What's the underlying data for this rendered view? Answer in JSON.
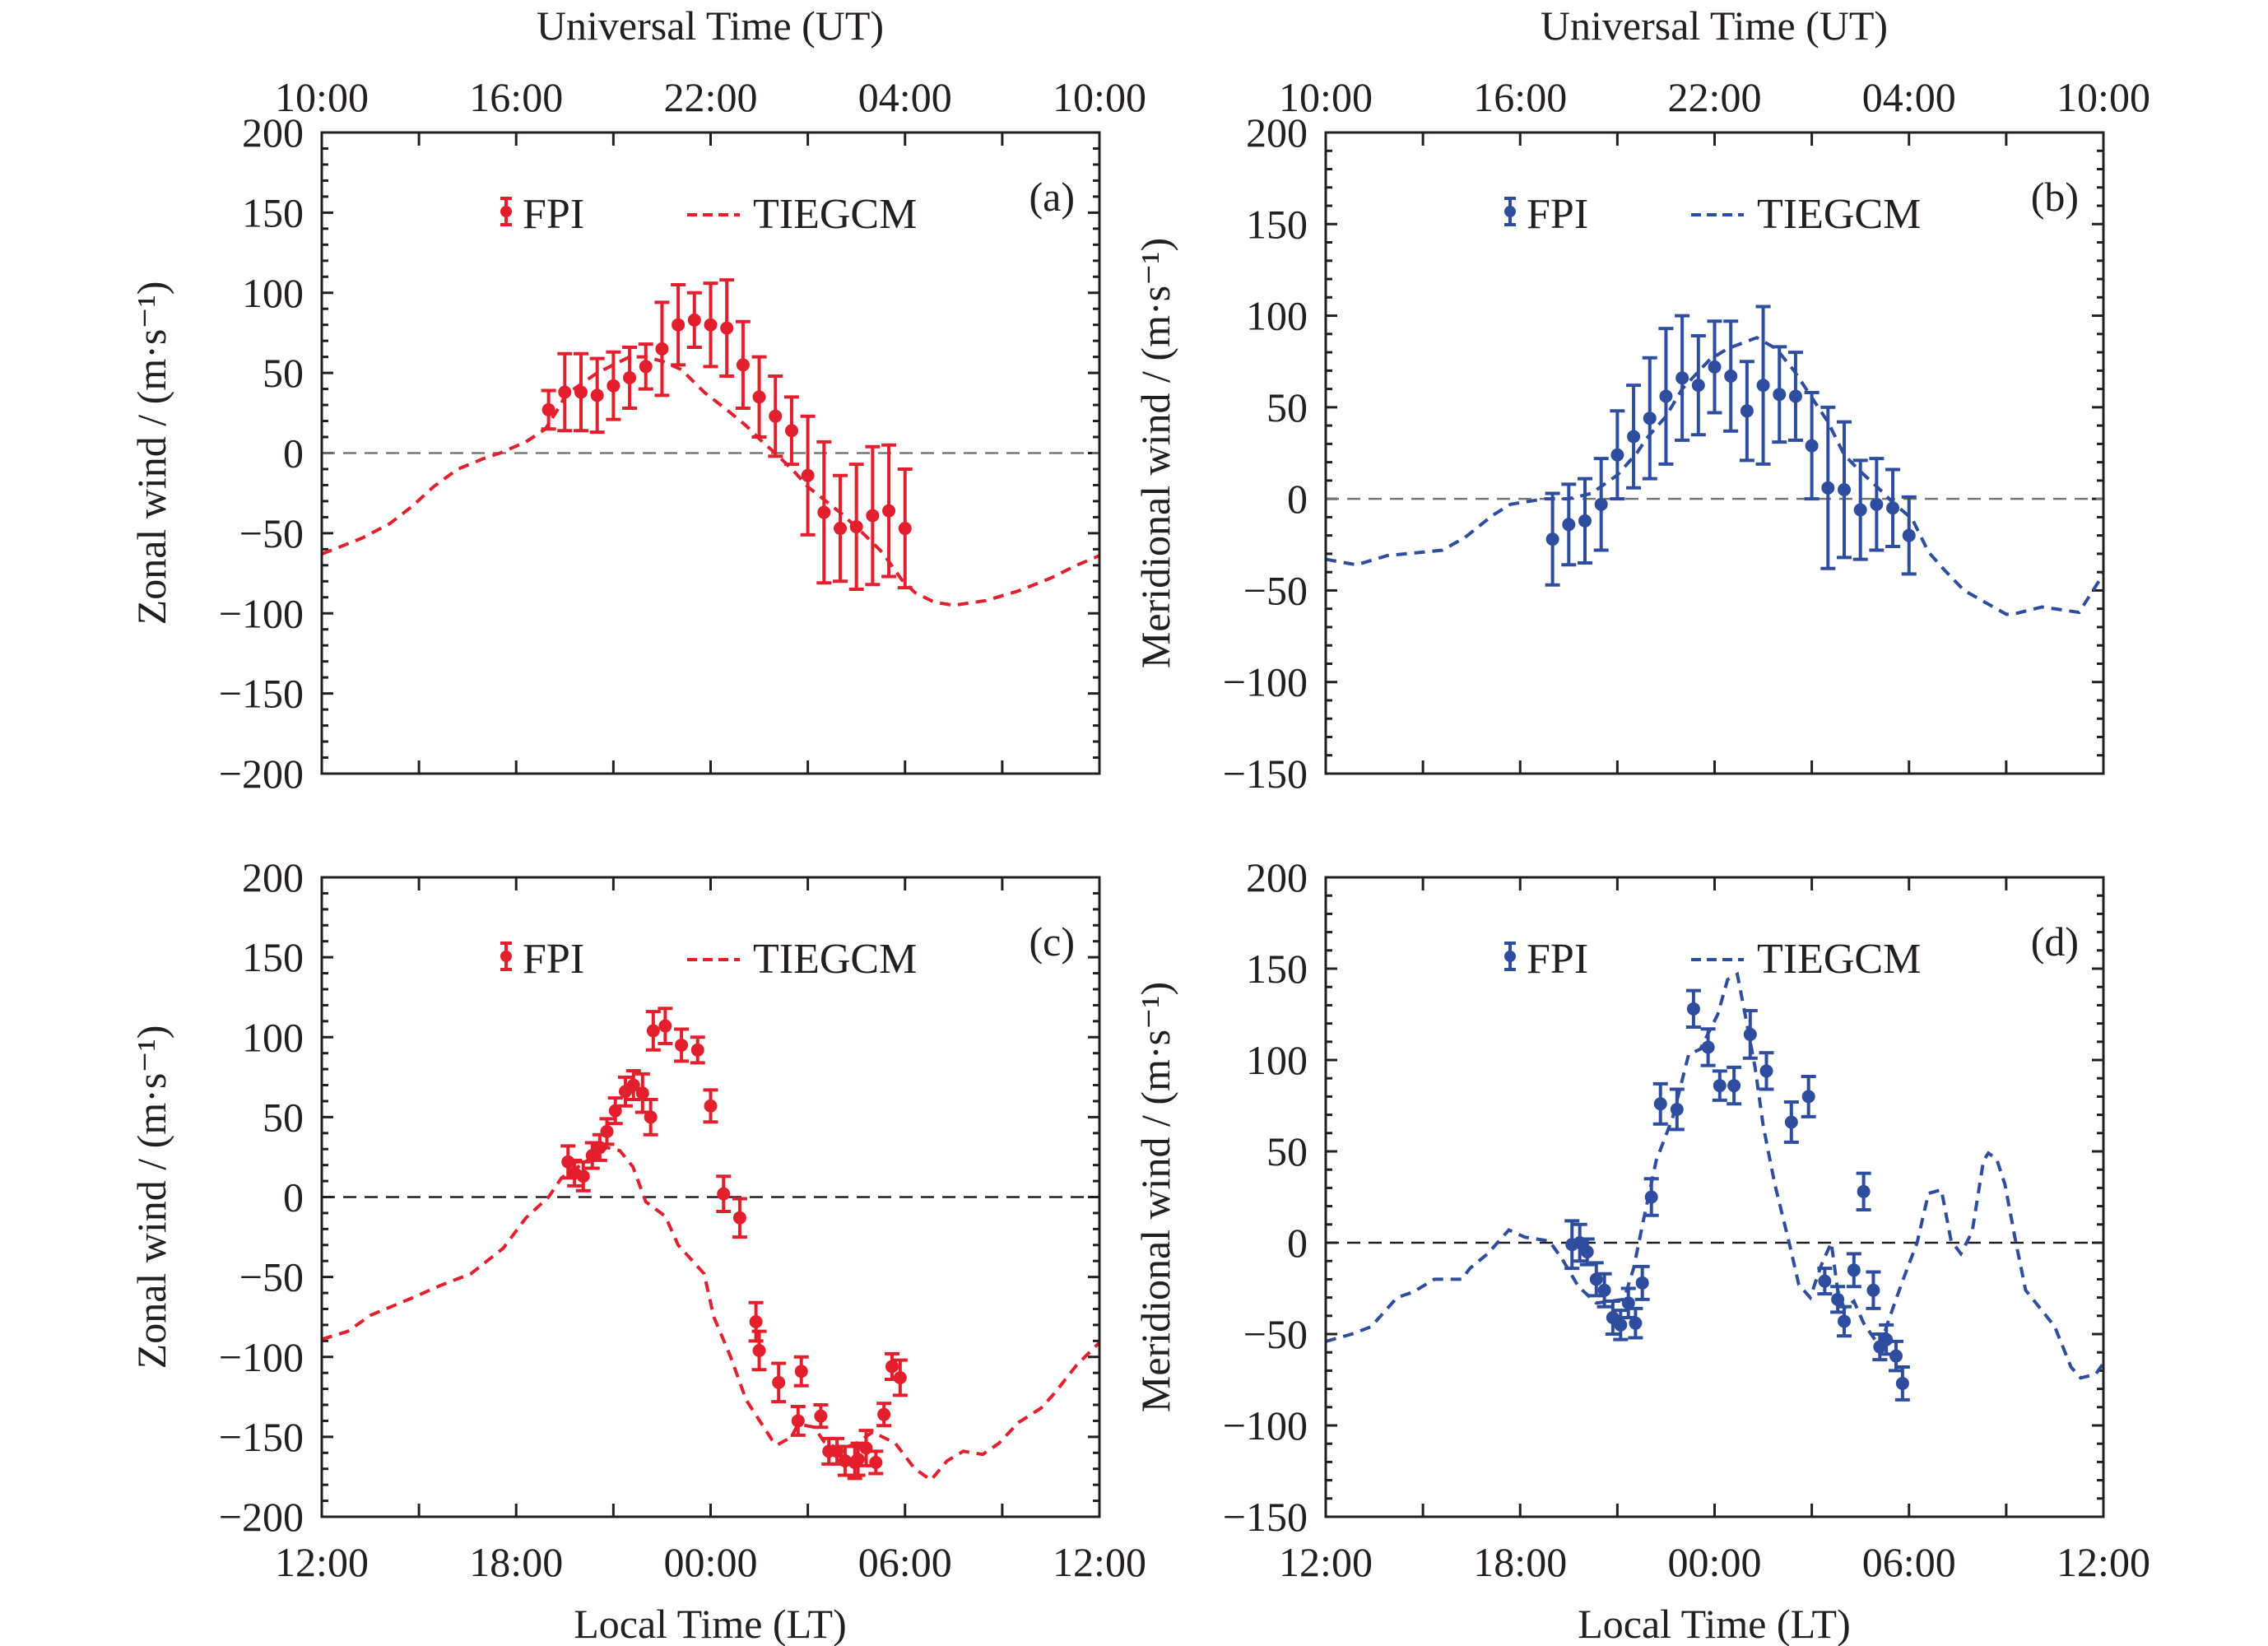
{
  "figure": {
    "top_axis_title": "Universal Time (UT)",
    "bottom_axis_title": "Local Time (LT)",
    "ut_tick_labels": [
      "10:00",
      "16:00",
      "22:00",
      "04:00",
      "10:00"
    ],
    "lt_tick_labels": [
      "12:00",
      "18:00",
      "00:00",
      "06:00",
      "12:00"
    ],
    "colors": {
      "red": "#e41f2d",
      "blue": "#2e4d9f",
      "axis": "#231f20",
      "zero_line_gray": "#777777",
      "zero_line_dark": "#231f20"
    }
  },
  "chart_data": [
    {
      "id": "a",
      "type": "scatter",
      "panel_label": "(a)",
      "ylabel": "Zonal wind / (m·s⁻¹)",
      "xlabel": "Local Time (LT)",
      "x_unit": "hours after 12:00 LT",
      "xlim": [
        0,
        24
      ],
      "ylim": [
        -200,
        200
      ],
      "yticks": [
        200,
        150,
        100,
        50,
        0,
        -50,
        -100,
        -150,
        -200
      ],
      "color": "red",
      "zero_line": "gray",
      "legend": {
        "fpi": "FPI",
        "model": "TIEGCM",
        "position": "top-center"
      },
      "fpi": {
        "x": [
          7.0,
          7.5,
          8.0,
          8.5,
          9.0,
          9.5,
          10.0,
          10.5,
          11.0,
          11.5,
          12.0,
          12.5,
          13.0,
          13.5,
          14.0,
          14.5,
          15.0,
          15.5,
          16.0,
          16.5,
          17.0,
          17.5,
          18.0
        ],
        "y": [
          27,
          38,
          38,
          36,
          42,
          47,
          54,
          65,
          80,
          83,
          80,
          78,
          55,
          35,
          23,
          14,
          -14,
          -37,
          -47,
          -46,
          -39,
          -36,
          -47
        ],
        "err": [
          12,
          24,
          24,
          23,
          21,
          19,
          14,
          29,
          25,
          17,
          26,
          30,
          27,
          25,
          25,
          21,
          37,
          44,
          33,
          39,
          43,
          41,
          37
        ]
      },
      "model": {
        "x": [
          0,
          1.25,
          2.1,
          2.8,
          3.45,
          4.2,
          5.05,
          5.5,
          6.3,
          6.9,
          7.4,
          7.5,
          8.5,
          9.5,
          10.0,
          10.55,
          11.1,
          11.8,
          12.5,
          13.1,
          13.6,
          14.1,
          14.6,
          15.0,
          15.5,
          16.05,
          16.7,
          17.3,
          17.9,
          18.3,
          18.9,
          19.5,
          20.5,
          21.5,
          22.5,
          23.3,
          24
        ],
        "y": [
          -63,
          -53,
          -44,
          -33,
          -21,
          -10,
          -3,
          0,
          7,
          15,
          31,
          36,
          50,
          60,
          60,
          57,
          52,
          38,
          27,
          17,
          7,
          -2,
          -12,
          -21,
          -29,
          -38,
          -50,
          -62,
          -79,
          -87,
          -93,
          -95,
          -92,
          -86,
          -78,
          -70,
          -64
        ]
      }
    },
    {
      "id": "b",
      "type": "scatter",
      "panel_label": "(b)",
      "ylabel": "Meridional wind / (m·s⁻¹)",
      "xlabel": "Local Time (LT)",
      "x_unit": "hours after 12:00 LT",
      "xlim": [
        0,
        24
      ],
      "ylim": [
        -150,
        200
      ],
      "yticks": [
        200,
        150,
        100,
        50,
        0,
        -50,
        -100,
        -150
      ],
      "color": "blue",
      "zero_line": "gray",
      "legend": {
        "fpi": "FPI",
        "model": "TIEGCM",
        "position": "top-center"
      },
      "fpi": {
        "x": [
          7.0,
          7.5,
          8.0,
          8.5,
          9.0,
          9.5,
          10.0,
          10.5,
          11.0,
          11.5,
          12.0,
          12.5,
          13.0,
          13.5,
          14.0,
          14.5,
          15.0,
          15.5,
          16.0,
          16.5,
          17.0,
          17.5,
          18.0
        ],
        "y": [
          -22,
          -14,
          -12,
          -3,
          24,
          34,
          44,
          56,
          66,
          62,
          72,
          67,
          48,
          62,
          57,
          56,
          29,
          6,
          5,
          -6,
          -3,
          -5,
          -20
        ],
        "err": [
          25,
          22,
          23,
          25,
          24,
          28,
          33,
          37,
          34,
          27,
          25,
          30,
          27,
          43,
          26,
          24,
          29,
          44,
          37,
          27,
          25,
          21,
          21
        ]
      },
      "model": {
        "x": [
          0,
          0.95,
          1.9,
          3.6,
          4.3,
          5.15,
          5.7,
          6.75,
          7.5,
          8.2,
          9.0,
          9.6,
          9.9,
          10.5,
          11.0,
          11.85,
          12.4,
          13.3,
          13.9,
          14.45,
          14.9,
          15.5,
          16.0,
          16.5,
          17.05,
          17.5,
          18.1,
          18.6,
          19.1,
          19.7,
          20.4,
          21.0,
          21.2,
          22.1,
          23.25,
          24
        ],
        "y": [
          -33,
          -36,
          -31,
          -28,
          -21,
          -9,
          -3,
          0,
          0,
          3,
          13,
          25,
          33,
          45,
          60,
          76,
          82,
          88,
          82,
          70,
          58,
          42,
          24,
          15,
          6,
          -2,
          -11,
          -29,
          -39,
          -50,
          -57,
          -63,
          -63,
          -59,
          -62,
          -41
        ]
      }
    },
    {
      "id": "c",
      "type": "scatter",
      "panel_label": "(c)",
      "ylabel": "Zonal wind / (m·s⁻¹)",
      "xlabel": "Local Time (LT)",
      "x_unit": "hours after 12:00 LT",
      "xlim": [
        0,
        24
      ],
      "ylim": [
        -200,
        200
      ],
      "yticks": [
        200,
        150,
        100,
        50,
        0,
        -50,
        -100,
        -150,
        -200
      ],
      "color": "red",
      "zero_line": "dark",
      "legend": {
        "fpi": "FPI",
        "model": "TIEGCM",
        "position": "top-center"
      },
      "fpi": {
        "x": [
          7.6,
          7.8,
          8.07,
          8.35,
          8.58,
          8.8,
          9.06,
          9.37,
          9.62,
          9.9,
          10.15,
          10.23,
          10.6,
          11.1,
          11.6,
          12.0,
          12.4,
          12.9,
          13.4,
          13.5,
          14.1,
          14.7,
          14.8,
          15.4,
          15.65,
          15.9,
          16.15,
          16.45,
          16.55,
          16.8,
          17.1,
          17.35,
          17.6,
          17.85
        ],
        "y": [
          22,
          15,
          13,
          26,
          31,
          41,
          54,
          66,
          70,
          65,
          50,
          104,
          107,
          95,
          92,
          57,
          2,
          -13,
          -78,
          -96,
          -116,
          -140,
          -109,
          -137,
          -159,
          -159,
          -165,
          -166,
          -164,
          -157,
          -166,
          -136,
          -106,
          -113
        ],
        "err": [
          10,
          8,
          9,
          8,
          8,
          8,
          8,
          9,
          9,
          12,
          11,
          12,
          11,
          10,
          8,
          10,
          11,
          12,
          12,
          12,
          12,
          9,
          9,
          7,
          8,
          8,
          9,
          10,
          10,
          11,
          7,
          7,
          8,
          11
        ]
      },
      "model": {
        "x": [
          0,
          0.8,
          1.5,
          2.8,
          3.7,
          4.6,
          5.6,
          6.3,
          7.0,
          7.4,
          8.8,
          9.2,
          9.6,
          10.0,
          10.6,
          11.0,
          11.8,
          12.1,
          12.6,
          13.1,
          13.9,
          14.06,
          14.5,
          14.7,
          15.2,
          15.5,
          16.0,
          16.5,
          17.0,
          17.7,
          18.3,
          18.8,
          19.3,
          19.8,
          20.4,
          20.9,
          21.5,
          22.2,
          22.6,
          23.3,
          24.0
        ],
        "y": [
          -89,
          -84,
          -74,
          -63,
          -55,
          -48,
          -32,
          -13,
          0,
          12,
          31,
          29,
          19,
          -3,
          -12,
          -30,
          -48,
          -75,
          -99,
          -127,
          -152,
          -155,
          -150,
          -142,
          -144,
          -153,
          -158,
          -154,
          -147,
          -154,
          -170,
          -177,
          -165,
          -159,
          -161,
          -154,
          -141,
          -132,
          -123,
          -105,
          -91
        ]
      }
    },
    {
      "id": "d",
      "type": "scatter",
      "panel_label": "(d)",
      "ylabel": "Meridional wind / (m·s⁻¹)",
      "xlabel": "Local Time (LT)",
      "x_unit": "hours after 12:00 LT",
      "xlim": [
        0,
        24
      ],
      "ylim": [
        -150,
        200
      ],
      "yticks": [
        200,
        150,
        100,
        50,
        0,
        -50,
        -100,
        -150
      ],
      "color": "blue",
      "zero_line": "dark",
      "legend": {
        "fpi": "FPI",
        "model": "TIEGCM",
        "position": "top-center"
      },
      "fpi": {
        "x": [
          7.6,
          7.84,
          8.07,
          8.35,
          8.6,
          8.86,
          9.1,
          9.34,
          9.56,
          9.77,
          10.05,
          10.33,
          10.84,
          11.35,
          11.8,
          12.16,
          12.6,
          13.1,
          13.6,
          14.37,
          14.9,
          15.4,
          15.8,
          16.0,
          16.3,
          16.6,
          16.9,
          17.1,
          17.3,
          17.6,
          17.8
        ],
        "y": [
          -1,
          0,
          -5,
          -20,
          -26,
          -41,
          -45,
          -33,
          -44,
          -22,
          25,
          76,
          73,
          128,
          107,
          86,
          86,
          114,
          94,
          66,
          80,
          -21,
          -31,
          -43,
          -15,
          28,
          -26,
          -57,
          -53,
          -62,
          -77
        ],
        "err": [
          13,
          10,
          7,
          9,
          9,
          9,
          8,
          8,
          8,
          9,
          10,
          11,
          11,
          10,
          10,
          8,
          10,
          13,
          10,
          11,
          11,
          7,
          7,
          8,
          9,
          10,
          10,
          7,
          8,
          8,
          9
        ]
      },
      "model": {
        "x": [
          0,
          0.8,
          1.4,
          1.75,
          2.2,
          2.7,
          3.35,
          4.2,
          4.45,
          5.0,
          5.3,
          5.65,
          6.15,
          6.9,
          7.3,
          7.8,
          8.35,
          9.2,
          9.5,
          9.8,
          10.2,
          10.7,
          11.2,
          11.56,
          12.1,
          12.4,
          12.7,
          12.9,
          13.25,
          13.5,
          13.86,
          14.3,
          14.6,
          14.95,
          15.3,
          15.6,
          15.8,
          16.0,
          16.3,
          16.6,
          17.1,
          17.4,
          17.8,
          18.25,
          18.6,
          19.0,
          19.3,
          19.6,
          19.95,
          20.3,
          20.45,
          20.7,
          20.96,
          21.3,
          21.6,
          22.1,
          22.5,
          23.0,
          23.3,
          23.76,
          24.0
        ],
        "y": [
          -54,
          -50,
          -46,
          -39,
          -30,
          -27,
          -20,
          -20,
          -14,
          -6,
          0,
          7,
          3,
          1,
          -9,
          -24,
          -33,
          -31,
          -14,
          12,
          45,
          68,
          103,
          106,
          125,
          144,
          147,
          129,
          96,
          64,
          32,
          0,
          -23,
          -30,
          -12,
          0,
          -26,
          -36,
          -32,
          -44,
          -57,
          -41,
          -21,
          0,
          27,
          29,
          1,
          -6,
          6,
          45,
          49,
          46,
          32,
          0,
          -26,
          -37,
          -46,
          -68,
          -74,
          -72,
          -66
        ]
      }
    }
  ]
}
